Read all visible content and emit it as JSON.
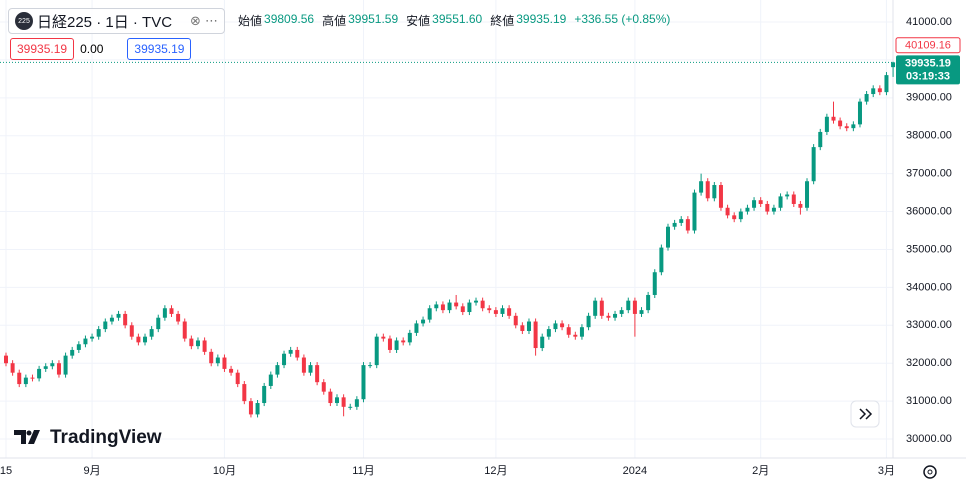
{
  "header": {
    "symbol_icon": "225",
    "symbol": "日経225 · 1日 · TVC",
    "ohlc": [
      {
        "label": "始値",
        "value": "39809.56"
      },
      {
        "label": "高値",
        "value": "39951.59"
      },
      {
        "label": "安値",
        "value": "39551.60"
      },
      {
        "label": "終値",
        "value": "39935.19"
      }
    ],
    "change": "+336.55 (+0.85%)",
    "inputs": [
      "39935.19",
      "0.00",
      "39935.19"
    ],
    "watermark": "TradingView"
  },
  "chart_data": {
    "type": "candlestick",
    "up_color": "#089981",
    "down_color": "#f23645",
    "grid": true,
    "categories": [
      "15",
      null,
      null,
      null,
      null,
      null,
      null,
      null,
      null,
      null,
      null,
      null,
      null,
      "9月",
      null,
      null,
      null,
      null,
      null,
      null,
      null,
      null,
      null,
      null,
      null,
      null,
      null,
      null,
      null,
      null,
      null,
      null,
      null,
      "10月",
      null,
      null,
      null,
      null,
      null,
      null,
      null,
      null,
      null,
      null,
      null,
      null,
      null,
      null,
      null,
      null,
      null,
      null,
      null,
      null,
      "11月",
      null,
      null,
      null,
      null,
      null,
      null,
      null,
      null,
      null,
      null,
      null,
      null,
      null,
      null,
      null,
      null,
      null,
      null,
      null,
      "12月",
      null,
      null,
      null,
      null,
      null,
      null,
      null,
      null,
      null,
      null,
      null,
      null,
      null,
      null,
      null,
      null,
      null,
      null,
      null,
      null,
      "2024",
      null,
      null,
      null,
      null,
      null,
      null,
      null,
      null,
      null,
      null,
      null,
      null,
      null,
      null,
      null,
      null,
      null,
      null,
      "2月",
      null,
      null,
      null,
      null,
      null,
      null,
      null,
      null,
      null,
      null,
      null,
      null,
      null,
      null,
      null,
      null,
      null,
      null,
      "3月",
      null
    ],
    "open": [
      32200,
      32000,
      31750,
      31450,
      31620,
      31600,
      31850,
      31920,
      32000,
      31700,
      32200,
      32350,
      32500,
      32650,
      32700,
      32900,
      33100,
      33200,
      33300,
      33000,
      32700,
      32550,
      32700,
      32900,
      33200,
      33450,
      33300,
      33100,
      32650,
      32450,
      32600,
      32300,
      32000,
      32150,
      31850,
      31750,
      31450,
      31000,
      30650,
      30950,
      31400,
      31700,
      31950,
      32250,
      32350,
      32150,
      31750,
      31950,
      31500,
      31250,
      30950,
      31100,
      30850,
      30850,
      31050,
      31950,
      31950,
      32700,
      32650,
      32350,
      32600,
      32550,
      32800,
      33050,
      33150,
      33450,
      33550,
      33400,
      33600,
      33500,
      33350,
      33600,
      33650,
      33450,
      33400,
      33300,
      33450,
      33250,
      33000,
      32850,
      33100,
      32400,
      32700,
      32900,
      33050,
      32950,
      32750,
      32700,
      32950,
      33250,
      33650,
      33250,
      33200,
      33300,
      33400,
      33650,
      33300,
      33400,
      33800,
      34400,
      35050,
      35600,
      35700,
      35800,
      35500,
      36500,
      36800,
      36350,
      36700,
      36100,
      35900,
      35800,
      36000,
      36100,
      36300,
      36200,
      36000,
      36100,
      36400,
      36450,
      36200,
      36100,
      36800,
      37700,
      38100,
      38500,
      38400,
      38250,
      38200,
      38300,
      38900,
      39100,
      39250,
      39150,
      39809.56
    ],
    "high": [
      32280,
      32080,
      31830,
      31700,
      31700,
      31930,
      32000,
      32080,
      32080,
      32280,
      32430,
      32580,
      32730,
      32780,
      32980,
      33180,
      33280,
      33380,
      33380,
      33080,
      32780,
      32780,
      32980,
      33280,
      33530,
      33530,
      33380,
      33180,
      32730,
      32680,
      32680,
      32380,
      32230,
      32230,
      31930,
      31830,
      31530,
      31080,
      31030,
      31480,
      31780,
      32030,
      32330,
      32430,
      32430,
      32230,
      32030,
      32030,
      31580,
      31330,
      31180,
      31180,
      30930,
      31130,
      32030,
      32030,
      32780,
      32780,
      32730,
      32680,
      32680,
      32880,
      33130,
      33230,
      33530,
      33630,
      33630,
      33680,
      33800,
      33580,
      33680,
      33730,
      33730,
      33530,
      33480,
      33530,
      33530,
      33330,
      33080,
      33180,
      33180,
      32780,
      32980,
      33130,
      33130,
      33030,
      32830,
      33030,
      33330,
      33730,
      33730,
      33330,
      33380,
      33480,
      33730,
      33730,
      33480,
      33880,
      34480,
      35130,
      35680,
      35780,
      35880,
      35880,
      36580,
      37000,
      36880,
      36780,
      36780,
      36180,
      35980,
      36080,
      36180,
      36380,
      36380,
      36280,
      36180,
      36480,
      36530,
      36530,
      36280,
      36880,
      37780,
      38180,
      38580,
      38900,
      38480,
      38330,
      38380,
      38980,
      39180,
      39330,
      39330,
      39680,
      39951.59
    ],
    "low": [
      31920,
      31670,
      31370,
      31370,
      31520,
      31520,
      31770,
      31840,
      31620,
      31620,
      32120,
      32270,
      32420,
      32570,
      32620,
      32820,
      33020,
      33120,
      32920,
      32620,
      32470,
      32470,
      32620,
      32820,
      33120,
      33220,
      33020,
      32570,
      32370,
      32370,
      32220,
      31920,
      31920,
      31770,
      31670,
      31370,
      30920,
      30570,
      30570,
      30870,
      31320,
      31620,
      31870,
      32170,
      32070,
      31670,
      31670,
      31420,
      31170,
      30870,
      30870,
      30600,
      30770,
      30770,
      30970,
      31870,
      31870,
      32570,
      32270,
      32270,
      32470,
      32470,
      32720,
      32970,
      33070,
      33370,
      33320,
      33320,
      33420,
      33270,
      33270,
      33520,
      33370,
      33320,
      33220,
      33220,
      33170,
      32920,
      32770,
      32770,
      32200,
      32320,
      32620,
      32820,
      32870,
      32670,
      32620,
      32620,
      32870,
      33170,
      33170,
      33120,
      33120,
      33220,
      33320,
      32700,
      33220,
      33320,
      33720,
      34320,
      34970,
      35520,
      35620,
      35420,
      35420,
      36420,
      36270,
      36270,
      36020,
      35820,
      35720,
      35720,
      35920,
      36020,
      36120,
      35920,
      35920,
      36020,
      36320,
      36120,
      35920,
      36020,
      36720,
      37620,
      38020,
      38320,
      38170,
      38120,
      38120,
      38220,
      38820,
      39020,
      39070,
      39070,
      39551.6
    ],
    "close": [
      32000,
      31750,
      31450,
      31620,
      31600,
      31850,
      31920,
      32000,
      31700,
      32200,
      32350,
      32500,
      32650,
      32700,
      32900,
      33100,
      33200,
      33300,
      33000,
      32700,
      32550,
      32700,
      32900,
      33200,
      33450,
      33300,
      33100,
      32650,
      32450,
      32600,
      32300,
      32000,
      32150,
      31850,
      31750,
      31450,
      31000,
      30650,
      30950,
      31400,
      31700,
      31950,
      32250,
      32350,
      32150,
      31750,
      31950,
      31500,
      31250,
      30950,
      31100,
      30850,
      30850,
      31050,
      31950,
      31950,
      32700,
      32650,
      32350,
      32600,
      32550,
      32800,
      33050,
      33150,
      33450,
      33550,
      33400,
      33600,
      33500,
      33350,
      33600,
      33650,
      33450,
      33400,
      33300,
      33450,
      33250,
      33000,
      32850,
      33100,
      32400,
      32700,
      32900,
      33050,
      32950,
      32750,
      32700,
      32950,
      33250,
      33650,
      33250,
      33200,
      33300,
      33400,
      33650,
      33300,
      33400,
      33800,
      34400,
      35050,
      35600,
      35700,
      35800,
      35500,
      36500,
      36800,
      36350,
      36700,
      36100,
      35900,
      35800,
      36000,
      36100,
      36300,
      36200,
      36000,
      36100,
      36400,
      36450,
      36200,
      36100,
      36800,
      37700,
      38100,
      38500,
      38400,
      38250,
      38200,
      38300,
      38900,
      39100,
      39250,
      39150,
      39598.64,
      39935.19
    ],
    "ylim": [
      29500,
      41580
    ],
    "yticks": [
      {
        "value": 30000,
        "label": "30000.00"
      },
      {
        "value": 31000,
        "label": "31000.00"
      },
      {
        "value": 32000,
        "label": "32000.00"
      },
      {
        "value": 33000,
        "label": "33000.00"
      },
      {
        "value": 34000,
        "label": "34000.00"
      },
      {
        "value": 35000,
        "label": "35000.00"
      },
      {
        "value": 36000,
        "label": "36000.00"
      },
      {
        "value": 37000,
        "label": "37000.00"
      },
      {
        "value": 38000,
        "label": "38000.00"
      },
      {
        "value": 39000,
        "label": "39000.00"
      },
      {
        "value": 40000,
        "label": "40000.00"
      },
      {
        "value": 41000,
        "label": "41000.00"
      }
    ],
    "price_labels": [
      {
        "value": 40109.16,
        "color": "#f23645"
      },
      {
        "value": 39935.19,
        "countdown": "03:19:33",
        "color": "#089981"
      }
    ]
  }
}
